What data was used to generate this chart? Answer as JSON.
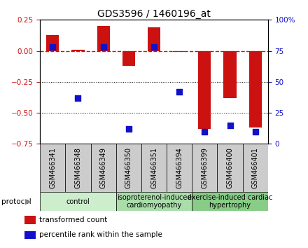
{
  "title": "GDS3596 / 1460196_at",
  "samples": [
    "GSM466341",
    "GSM466348",
    "GSM466349",
    "GSM466350",
    "GSM466351",
    "GSM466394",
    "GSM466399",
    "GSM466400",
    "GSM466401"
  ],
  "bar_values": [
    0.13,
    0.01,
    0.2,
    -0.12,
    0.19,
    -0.01,
    -0.63,
    -0.38,
    -0.62
  ],
  "dot_values_pct": [
    78,
    37,
    78,
    12,
    78,
    42,
    10,
    15,
    10
  ],
  "ylim_left": [
    -0.75,
    0.25
  ],
  "ylim_right": [
    0,
    100
  ],
  "yticks_left": [
    -0.75,
    -0.5,
    -0.25,
    0.0,
    0.25
  ],
  "yticks_right": [
    0,
    25,
    50,
    75,
    100
  ],
  "dotted_lines": [
    -0.25,
    -0.5
  ],
  "bar_color": "#CC1111",
  "dot_color": "#1111CC",
  "groups": [
    {
      "label": "control",
      "start": 0,
      "end": 3,
      "color": "#CCEECC"
    },
    {
      "label": "isoproterenol-induced\ncardiomyopathy",
      "start": 3,
      "end": 6,
      "color": "#AADDAA"
    },
    {
      "label": "exercise-induced cardiac\nhypertrophy",
      "start": 6,
      "end": 9,
      "color": "#88CC88"
    }
  ],
  "legend_items": [
    {
      "label": "transformed count",
      "color": "#CC1111"
    },
    {
      "label": "percentile rank within the sample",
      "color": "#1111CC"
    }
  ],
  "protocol_label": "protocol",
  "bar_width": 0.5,
  "dot_size": 28,
  "sample_box_color": "#CCCCCC",
  "label_fontsize": 7,
  "group_fontsize": 7,
  "title_fontsize": 10
}
